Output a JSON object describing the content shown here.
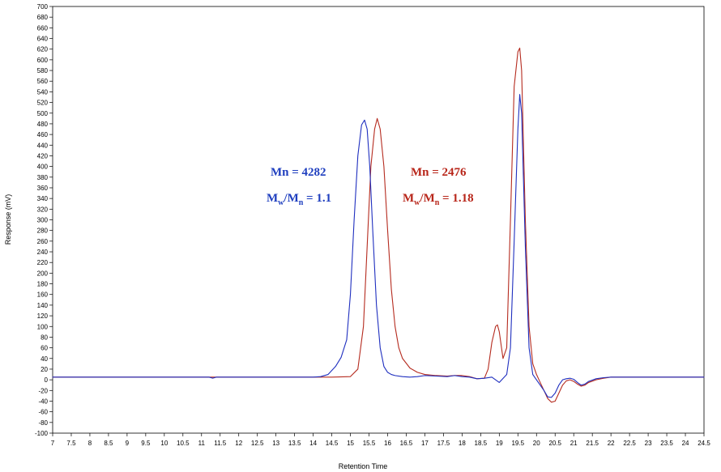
{
  "chart_data": {
    "type": "line",
    "title": "",
    "xlabel": "Retention Time",
    "ylabel": "Response (mV)",
    "xlim": [
      7,
      24.5
    ],
    "ylim": [
      -100,
      700
    ],
    "x_ticks": [
      7,
      7.5,
      8,
      8.5,
      9,
      9.5,
      10,
      10.5,
      11,
      11.5,
      12,
      12.5,
      13,
      13.5,
      14,
      14.5,
      15,
      15.5,
      16,
      16.5,
      17,
      17.5,
      18,
      18.5,
      19,
      19.5,
      20,
      20.5,
      21,
      21.5,
      22,
      22.5,
      23,
      23.5,
      24,
      24.5
    ],
    "y_ticks": [
      -100,
      -80,
      -60,
      -40,
      -20,
      0,
      20,
      40,
      60,
      80,
      100,
      120,
      140,
      160,
      180,
      200,
      220,
      240,
      260,
      280,
      300,
      320,
      340,
      360,
      380,
      400,
      420,
      440,
      460,
      480,
      500,
      520,
      540,
      560,
      580,
      600,
      620,
      640,
      660,
      680,
      700
    ],
    "grid": false,
    "series": [
      {
        "color": "#1f2fbf",
        "x": [
          7,
          11.2,
          11.3,
          11.4,
          14,
          14.2,
          14.4,
          14.6,
          14.75,
          14.9,
          15.0,
          15.1,
          15.2,
          15.3,
          15.38,
          15.45,
          15.52,
          15.6,
          15.7,
          15.8,
          15.9,
          16.0,
          16.1,
          16.2,
          16.4,
          16.6,
          16.8,
          17.0,
          17.3,
          17.6,
          17.8,
          18.0,
          18.2,
          18.4,
          18.6,
          18.8,
          19.0,
          19.2,
          19.3,
          19.4,
          19.5,
          19.55,
          19.6,
          19.7,
          19.8,
          19.9,
          20.0,
          20.1,
          20.2,
          20.3,
          20.4,
          20.5,
          20.6,
          20.7,
          20.8,
          20.9,
          21.0,
          21.1,
          21.2,
          21.3,
          21.4,
          21.6,
          21.8,
          22.0,
          22.5,
          23,
          24,
          24.5
        ],
        "y": [
          5,
          5,
          3,
          5,
          5,
          6,
          10,
          25,
          42,
          75,
          160,
          300,
          420,
          478,
          487,
          470,
          400,
          280,
          140,
          60,
          25,
          14,
          10,
          8,
          6,
          5,
          6,
          8,
          7,
          6,
          8,
          6,
          5,
          2,
          3,
          5,
          -5,
          10,
          60,
          260,
          470,
          535,
          500,
          250,
          60,
          10,
          0,
          -10,
          -20,
          -32,
          -33,
          -25,
          -10,
          0,
          2,
          3,
          1,
          -5,
          -10,
          -8,
          -3,
          2,
          4,
          5,
          5,
          5,
          5,
          5
        ]
      },
      {
        "color": "#b52b1f",
        "x": [
          7,
          14,
          14.5,
          15.0,
          15.2,
          15.35,
          15.45,
          15.55,
          15.65,
          15.72,
          15.8,
          15.9,
          16.0,
          16.1,
          16.2,
          16.3,
          16.4,
          16.6,
          16.8,
          17.0,
          17.3,
          17.6,
          17.8,
          18.0,
          18.2,
          18.4,
          18.6,
          18.7,
          18.8,
          18.9,
          18.95,
          19.0,
          19.1,
          19.2,
          19.3,
          19.4,
          19.5,
          19.55,
          19.6,
          19.7,
          19.8,
          19.9,
          20.0,
          20.1,
          20.2,
          20.3,
          20.4,
          20.5,
          20.6,
          20.7,
          20.8,
          20.9,
          21.0,
          21.1,
          21.2,
          21.3,
          21.4,
          21.6,
          21.8,
          22.0,
          22.5,
          23,
          24,
          24.5
        ],
        "y": [
          5,
          5,
          5,
          6,
          20,
          100,
          250,
          400,
          470,
          490,
          470,
          400,
          280,
          170,
          100,
          60,
          40,
          22,
          14,
          10,
          8,
          7,
          8,
          8,
          6,
          2,
          3,
          20,
          70,
          100,
          103,
          90,
          40,
          60,
          300,
          550,
          615,
          622,
          580,
          300,
          100,
          30,
          10,
          -5,
          -20,
          -35,
          -42,
          -40,
          -25,
          -10,
          -2,
          0,
          -3,
          -8,
          -12,
          -10,
          -5,
          0,
          3,
          5,
          5,
          5,
          5,
          5
        ]
      }
    ],
    "annotations": [
      {
        "lines": [
          "Mn = 4282",
          "Mw/Mn = 1.1"
        ],
        "color": "#1f3fbf"
      },
      {
        "lines": [
          "Mn = 2476",
          "Mw/Mn = 1.18"
        ],
        "color": "#b8261a"
      }
    ]
  }
}
